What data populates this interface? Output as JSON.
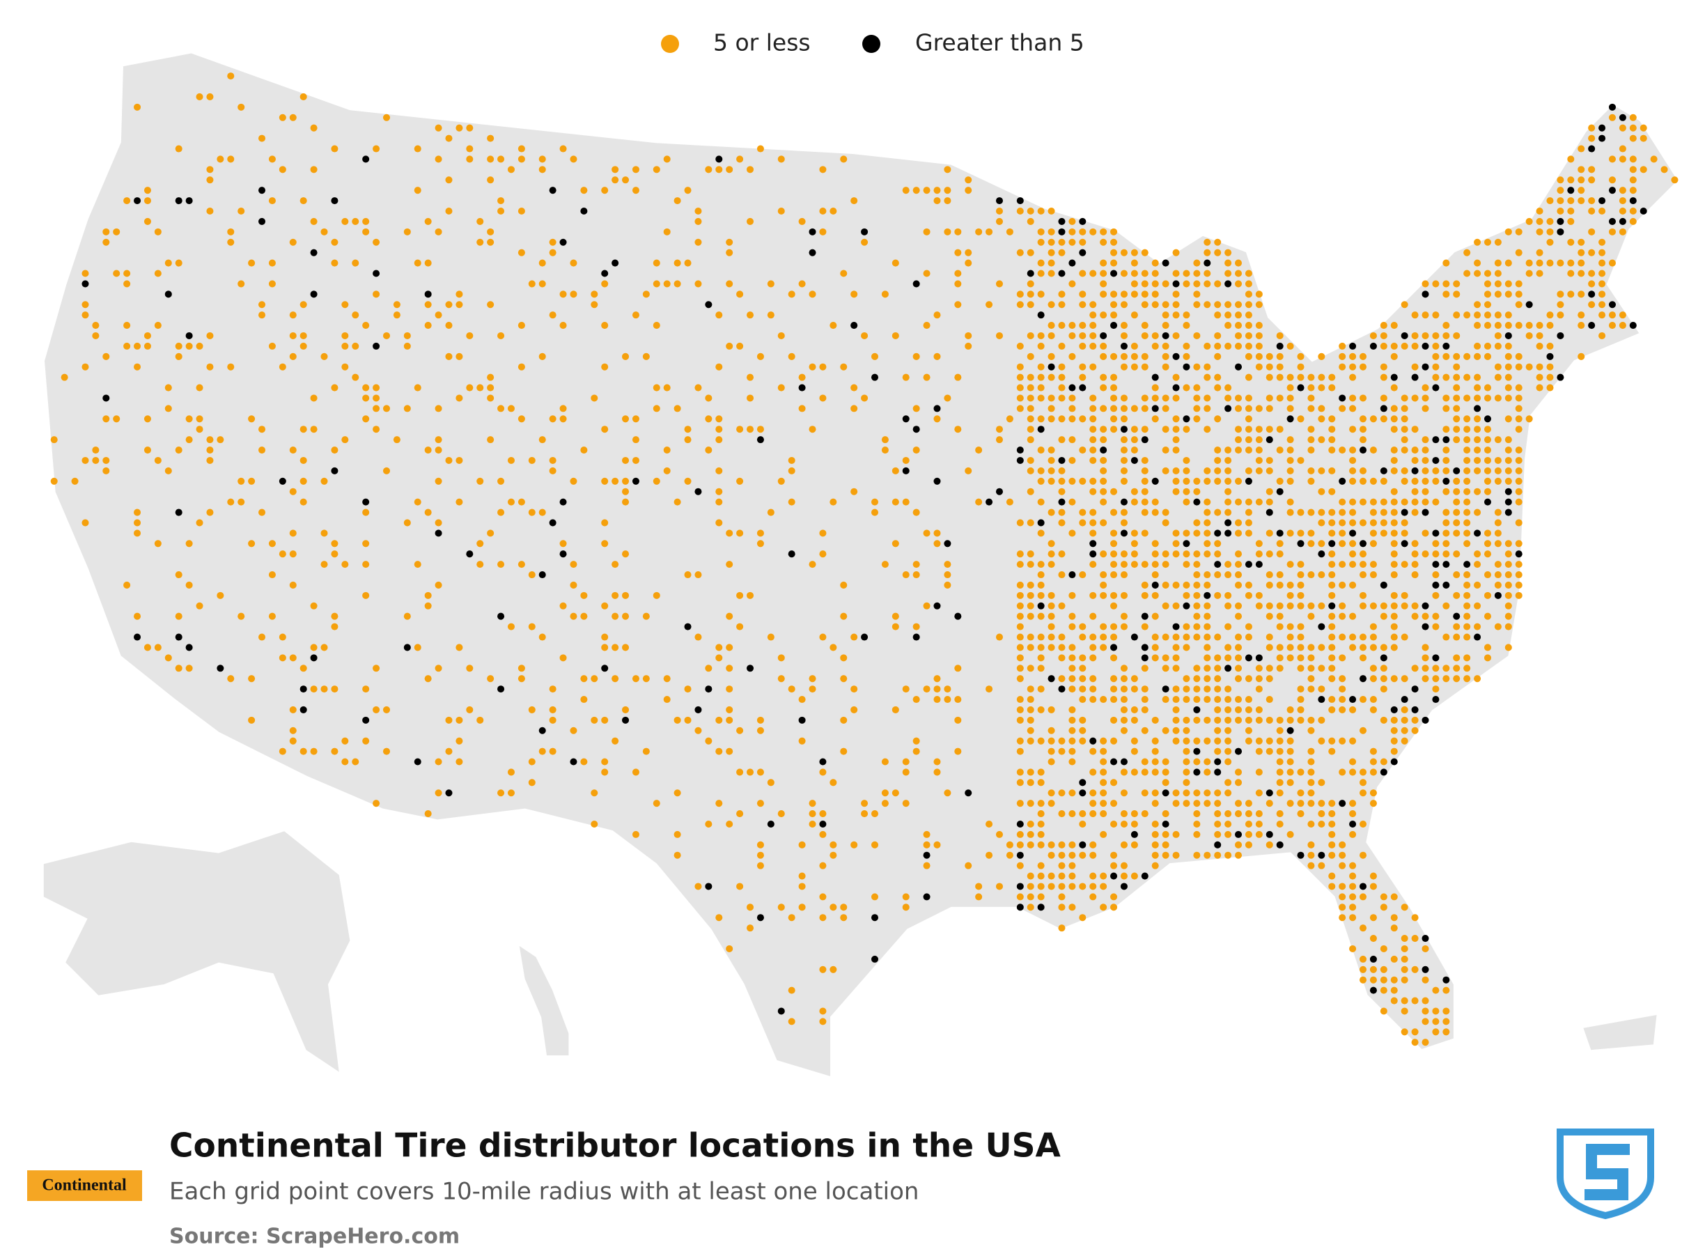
{
  "legend": [
    {
      "label": "5 or less",
      "color": "#f5a00c"
    },
    {
      "label": "Greater than 5",
      "color": "#000000"
    }
  ],
  "title": "Continental Tire distributor locations in the USA",
  "subtitle": "Each grid point covers 10-mile radius with at least one location",
  "source": "Source: ScrapeHero.com",
  "logo": "Continental"
}
